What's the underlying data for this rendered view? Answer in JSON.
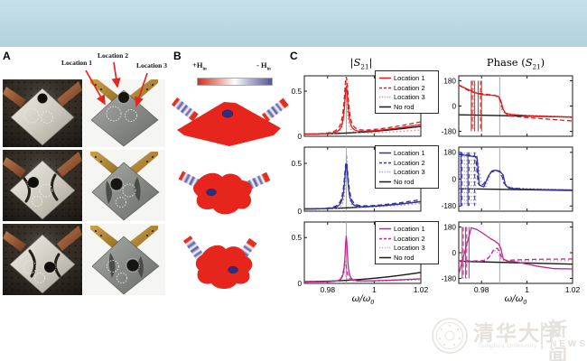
{
  "figure": {
    "panels": {
      "a": {
        "label": "A",
        "locations": [
          "Location 1",
          "Location 2",
          "Location 3"
        ]
      },
      "b": {
        "label": "B",
        "colorbar": {
          "plus_pre": "+H",
          "plus_sub": "in",
          "minus_pre": "- H",
          "minus_sub": "in"
        }
      },
      "c": {
        "label": "C",
        "amp_title": {
          "pre": "|",
          "s": "S",
          "sub": "21",
          "post": "|"
        },
        "phase_title": {
          "pre": "Phase (",
          "s": "S",
          "sub": "21",
          "post": ")"
        },
        "xlabel": {
          "pre": "ω/ω",
          "sub": "0"
        }
      }
    }
  },
  "watermark": {
    "university_cn": "清华大学",
    "university_en": "Tsinghua University",
    "news_cn": "新闻",
    "news_en": "NEWS"
  },
  "colors": {
    "banner_top": "#c6e0ea",
    "banner_bottom": "#b2d2dd",
    "red": "#e31a1c",
    "red_light": "#f2807d",
    "blue": "#33339b",
    "blue_light": "#9a9ad2",
    "magenta": "#c2268e",
    "magenta_light": "#dc9ac6",
    "black_line": "#1a1a1a",
    "resonance_line": "#a8a8a8",
    "field_red": "#e6261d",
    "field_blue": "#2e2e7e",
    "arrow_red": "#e5261f"
  },
  "chart_data": [
    {
      "id": "amp-row1",
      "type": "line",
      "row": 1,
      "col": "amplitude",
      "col_title": "|S21|",
      "x_axis": {
        "label": "ω/ω0",
        "lim": [
          0.97,
          1.02
        ],
        "ticks": [
          0.98,
          1,
          1.02
        ],
        "tick_labels": [
          "0.98",
          "1",
          "1.02"
        ]
      },
      "ylim": [
        0,
        0.67
      ],
      "yticks": [
        0.5,
        0
      ],
      "ytick_labels": [
        "0.5",
        "0"
      ],
      "vline": 0.988,
      "legend": true,
      "series": [
        {
          "name": "Location 1",
          "style": "solid",
          "color": "#e31a1c",
          "model": "peak",
          "center": 0.988,
          "width": 0.0009,
          "height": 0.52,
          "base": [
            0.02,
            0.13
          ]
        },
        {
          "name": "Location 2",
          "style": "dashed",
          "color": "#e31a1c",
          "model": "peak",
          "center": 0.988,
          "width": 0.0011,
          "height": 0.62,
          "base": [
            0.02,
            0.16
          ]
        },
        {
          "name": "Location 3",
          "style": "dotted",
          "color": "#f2807d",
          "model": "peak",
          "center": 0.9878,
          "width": 0.0008,
          "height": 0.42,
          "base": [
            0.02,
            0.07
          ]
        },
        {
          "name": "No rod",
          "style": "solid",
          "color": "#1a1a1a",
          "model": "peak",
          "center": 0.988,
          "width": 0.001,
          "height": 0,
          "base": [
            0.025,
            0.11
          ]
        }
      ]
    },
    {
      "id": "phase-row1",
      "type": "line",
      "row": 1,
      "col": "phase",
      "col_title": "Phase (S21)",
      "x_axis": {
        "label": "ω/ω0",
        "lim": [
          0.97,
          1.02
        ],
        "ticks": [
          0.98,
          1,
          1.02
        ],
        "tick_labels": [
          "0.98",
          "1",
          "1.02"
        ]
      },
      "ylim": [
        -215,
        215
      ],
      "yticks": [
        180,
        0,
        -180
      ],
      "ytick_labels": [
        "180",
        "0",
        "-180"
      ],
      "vline": 0.988,
      "series": [
        {
          "name": "Location 1",
          "style": "solid",
          "color": "#e31a1c",
          "model": "points",
          "spikes": [
            0.9755,
            0.977,
            0.9785,
            0.98
          ],
          "points": [
            [
              0.97,
              150
            ],
            [
              0.9735,
              122
            ],
            [
              0.9755,
              108
            ],
            [
              0.977,
              96
            ],
            [
              0.979,
              86
            ],
            [
              0.981,
              80
            ],
            [
              0.9835,
              78
            ],
            [
              0.986,
              75
            ],
            [
              0.9875,
              68
            ],
            [
              0.9885,
              38
            ],
            [
              0.9895,
              -22
            ],
            [
              0.9905,
              -50
            ],
            [
              0.993,
              -60
            ],
            [
              1.0,
              -68
            ],
            [
              1.01,
              -74
            ],
            [
              1.02,
              -80
            ]
          ]
        },
        {
          "name": "Location 2",
          "style": "dashed",
          "color": "#e31a1c",
          "model": "points",
          "spikes": [
            0.976,
            0.9795
          ],
          "points": [
            [
              0.97,
              148
            ],
            [
              0.975,
              104
            ],
            [
              0.978,
              92
            ],
            [
              0.982,
              84
            ],
            [
              0.986,
              76
            ],
            [
              0.988,
              52
            ],
            [
              0.9895,
              -36
            ],
            [
              0.992,
              -70
            ],
            [
              1.0,
              -82
            ],
            [
              1.01,
              -94
            ],
            [
              1.02,
              -106
            ]
          ]
        },
        {
          "name": "Location 3",
          "style": "dotted",
          "color": "#f2807d",
          "model": "points",
          "spikes": [
            0.9765
          ],
          "points": [
            [
              0.97,
              146
            ],
            [
              0.976,
              100
            ],
            [
              0.98,
              86
            ],
            [
              0.985,
              76
            ],
            [
              0.9875,
              64
            ],
            [
              0.989,
              -30
            ],
            [
              0.991,
              -56
            ],
            [
              1.0,
              -66
            ],
            [
              1.02,
              -76
            ]
          ]
        },
        {
          "name": "No rod",
          "style": "solid",
          "color": "#1a1a1a",
          "model": "points",
          "points": [
            [
              0.97,
              -62
            ],
            [
              1.02,
              -78
            ]
          ]
        }
      ]
    },
    {
      "id": "amp-row2",
      "type": "line",
      "row": 2,
      "col": "amplitude",
      "x_axis": {
        "label": "ω/ω0",
        "lim": [
          0.97,
          1.02
        ],
        "ticks": [
          0.98,
          1,
          1.02
        ],
        "tick_labels": [
          "0.98",
          "1",
          "1.02"
        ]
      },
      "ylim": [
        0,
        0.67
      ],
      "yticks": [
        0.5,
        0
      ],
      "ytick_labels": [
        "0.5",
        "0"
      ],
      "vline": 0.988,
      "legend": true,
      "series": [
        {
          "name": "Location 1",
          "style": "solid",
          "color": "#33339b",
          "model": "peak",
          "center": 0.988,
          "width": 0.0009,
          "height": 0.46,
          "base": [
            0.02,
            0.1
          ]
        },
        {
          "name": "Location 2",
          "style": "dashed",
          "color": "#33339b",
          "model": "peak",
          "center": 0.988,
          "width": 0.0011,
          "height": 0.48,
          "base": [
            0.02,
            0.12
          ]
        },
        {
          "name": "Location 3",
          "style": "dotted",
          "color": "#9a9ad2",
          "model": "peak",
          "center": 0.9882,
          "width": 0.0006,
          "height": 0.56,
          "base": [
            0.02,
            0.08
          ]
        },
        {
          "name": "No rod",
          "style": "solid",
          "color": "#1a1a1a",
          "model": "peak",
          "center": 0.988,
          "width": 0.001,
          "height": 0,
          "base": [
            0.025,
            0.1
          ]
        }
      ]
    },
    {
      "id": "phase-row2",
      "type": "line",
      "row": 2,
      "col": "phase",
      "x_axis": {
        "label": "ω/ω0",
        "lim": [
          0.97,
          1.02
        ],
        "ticks": [
          0.98,
          1,
          1.02
        ],
        "tick_labels": [
          "0.98",
          "1",
          "1.02"
        ]
      },
      "ylim": [
        -215,
        215
      ],
      "yticks": [
        180,
        0,
        -180
      ],
      "ytick_labels": [
        "180",
        "0",
        "-180"
      ],
      "vline": 0.988,
      "series": [
        {
          "name": "Location 1",
          "style": "solid",
          "color": "#33339b",
          "model": "points",
          "spikes": [
            0.971,
            0.974
          ],
          "points": [
            [
              0.97,
              165
            ],
            [
              0.974,
              158
            ],
            [
              0.978,
              148
            ],
            [
              0.9785,
              60
            ],
            [
              0.979,
              -40
            ],
            [
              0.981,
              -52
            ],
            [
              0.983,
              20
            ],
            [
              0.9845,
              55
            ],
            [
              0.986,
              60
            ],
            [
              0.988,
              54
            ],
            [
              0.9895,
              28
            ],
            [
              0.9905,
              -40
            ],
            [
              0.992,
              -60
            ],
            [
              0.996,
              -66
            ],
            [
              1.005,
              -70
            ],
            [
              1.02,
              -73
            ]
          ]
        },
        {
          "name": "Location 2",
          "style": "dashed",
          "color": "#33339b",
          "model": "points",
          "spikes": [
            0.9715,
            0.9745,
            0.977
          ],
          "points": [
            [
              0.97,
              168
            ],
            [
              0.9745,
              160
            ],
            [
              0.9775,
              150
            ],
            [
              0.9785,
              -30
            ],
            [
              0.98,
              -50
            ],
            [
              0.9825,
              0
            ],
            [
              0.984,
              45
            ],
            [
              0.9865,
              58
            ],
            [
              0.9885,
              45
            ],
            [
              0.99,
              -30
            ],
            [
              0.9925,
              -58
            ],
            [
              1.0,
              -68
            ],
            [
              1.02,
              -74
            ]
          ]
        },
        {
          "name": "Location 3",
          "style": "dotted",
          "color": "#9a9ad2",
          "model": "points",
          "spikes": [
            0.9705,
            0.9725,
            0.9735,
            0.9755,
            0.9765,
            0.9775
          ],
          "points": [
            [
              0.97,
              170
            ],
            [
              0.978,
              155
            ],
            [
              0.979,
              70
            ],
            [
              0.98,
              -35
            ],
            [
              0.982,
              -48
            ],
            [
              0.984,
              40
            ],
            [
              0.986,
              58
            ],
            [
              0.988,
              50
            ],
            [
              0.99,
              -35
            ],
            [
              0.993,
              -60
            ],
            [
              1.02,
              -72
            ]
          ]
        },
        {
          "name": "No rod",
          "style": "solid",
          "color": "#1a1a1a",
          "model": "points",
          "points": [
            [
              0.97,
              -64
            ],
            [
              1.02,
              -76
            ]
          ]
        }
      ]
    },
    {
      "id": "amp-row3",
      "type": "line",
      "row": 3,
      "col": "amplitude",
      "xlabel": "ω/ω0",
      "x_axis": {
        "label": "ω/ω0",
        "lim": [
          0.97,
          1.02
        ],
        "ticks": [
          0.98,
          1,
          1.02
        ],
        "tick_labels": [
          "0.98",
          "1",
          "1.02"
        ]
      },
      "ylim": [
        0,
        0.67
      ],
      "yticks": [
        0.5,
        0
      ],
      "ytick_labels": [
        "0.5",
        "0"
      ],
      "vline": 0.988,
      "legend": true,
      "series": [
        {
          "name": "Location 1",
          "style": "solid",
          "color": "#c2268e",
          "model": "peak",
          "center": 0.988,
          "width": 0.0006,
          "height": 0.5,
          "base": [
            0.015,
            0.05
          ]
        },
        {
          "name": "Location 2",
          "style": "dashed",
          "color": "#c2268e",
          "model": "peak",
          "center": 0.9875,
          "width": 0.0008,
          "height": 0.22,
          "base": [
            0.015,
            0.05
          ]
        },
        {
          "name": "Location 3",
          "style": "dotted",
          "color": "#dc9ac6",
          "model": "peak",
          "center": 0.987,
          "width": 0.0008,
          "height": 0.12,
          "base": [
            0.015,
            0.04
          ]
        },
        {
          "name": "No rod",
          "style": "solid",
          "color": "#1a1a1a",
          "model": "peak",
          "center": 0.988,
          "width": 0.001,
          "height": 0,
          "base": [
            0.02,
            0.12
          ]
        }
      ]
    },
    {
      "id": "phase-row3",
      "type": "line",
      "row": 3,
      "col": "phase",
      "xlabel": "ω/ω0",
      "x_axis": {
        "label": "ω/ω0",
        "lim": [
          0.97,
          1.02
        ],
        "ticks": [
          0.98,
          1,
          1.02
        ],
        "tick_labels": [
          "0.98",
          "1",
          "1.02"
        ]
      },
      "ylim": [
        -215,
        215
      ],
      "yticks": [
        180,
        0,
        -180
      ],
      "ytick_labels": [
        "180",
        "0",
        "-180"
      ],
      "vline": 0.988,
      "series": [
        {
          "name": "Location 1",
          "style": "solid",
          "color": "#c2268e",
          "model": "points",
          "spikes": [
            0.9715,
            0.973,
            0.9745
          ],
          "points": [
            [
              0.97,
              -150
            ],
            [
              0.9755,
              175
            ],
            [
              0.978,
              162
            ],
            [
              0.981,
              132
            ],
            [
              0.984,
              98
            ],
            [
              0.986,
              80
            ],
            [
              0.9875,
              62
            ],
            [
              0.9885,
              30
            ],
            [
              0.9895,
              -42
            ],
            [
              0.991,
              -58
            ],
            [
              0.995,
              -64
            ],
            [
              1.0,
              -80
            ],
            [
              1.005,
              -96
            ],
            [
              1.012,
              -112
            ],
            [
              1.02,
              -114
            ]
          ]
        },
        {
          "name": "Location 2",
          "style": "dashed",
          "color": "#c2268e",
          "model": "points",
          "spikes": [
            0.972,
            0.9735
          ],
          "points": [
            [
              0.97,
              -55
            ],
            [
              0.976,
              -58
            ],
            [
              0.982,
              -55
            ],
            [
              0.984,
              -18
            ],
            [
              0.9855,
              26
            ],
            [
              0.987,
              30
            ],
            [
              0.988,
              4
            ],
            [
              0.989,
              -44
            ],
            [
              0.991,
              -54
            ],
            [
              0.996,
              -50
            ],
            [
              1.005,
              -46
            ],
            [
              1.02,
              -44
            ]
          ]
        },
        {
          "name": "Location 3",
          "style": "dotted",
          "color": "#dc9ac6",
          "model": "points",
          "points": [
            [
              0.97,
              -58
            ],
            [
              0.98,
              -58
            ],
            [
              0.9835,
              -28
            ],
            [
              0.985,
              12
            ],
            [
              0.9865,
              16
            ],
            [
              0.9875,
              -14
            ],
            [
              0.989,
              -54
            ],
            [
              0.995,
              -58
            ],
            [
              1.02,
              -56
            ]
          ]
        },
        {
          "name": "No rod",
          "style": "solid",
          "color": "#1a1a1a",
          "model": "points",
          "points": [
            [
              0.97,
              -60
            ],
            [
              1.02,
              -80
            ]
          ]
        }
      ]
    }
  ]
}
